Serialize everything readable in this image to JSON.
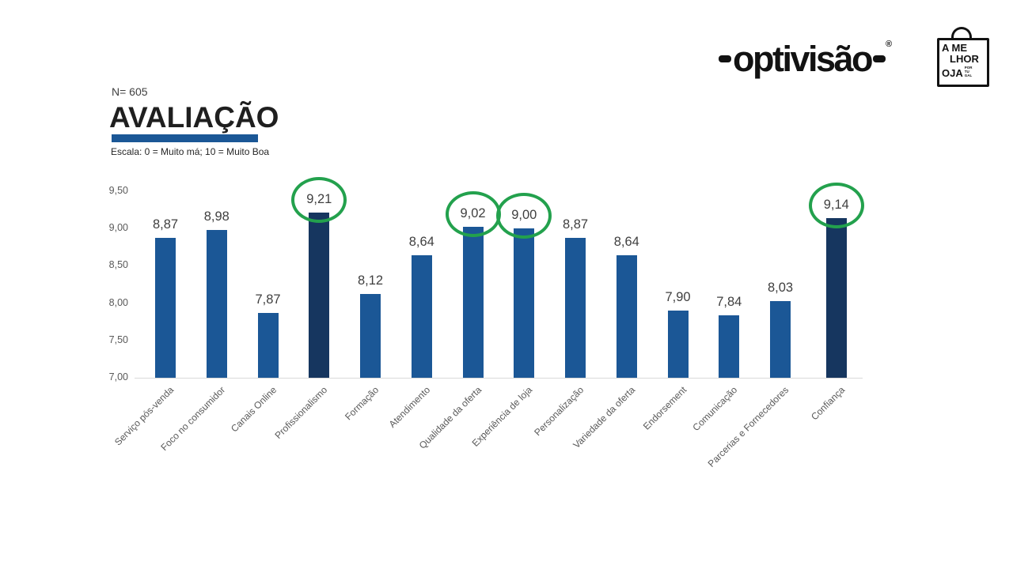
{
  "header": {
    "brand": "optivisão",
    "brand_mark": "®",
    "badge": {
      "line1": "A ME",
      "line2": "LHOR",
      "line3": "OJA",
      "small": "POR TU GAL"
    }
  },
  "title_block": {
    "sample": "N= 605",
    "title": "AVALIAÇÃO",
    "scale_note": "Escala: 0 = Muito má; 10 = Muito Boa"
  },
  "chart_data": {
    "type": "bar",
    "title": "AVALIAÇÃO",
    "categories": [
      "Serviço pós-venda",
      "Foco no consumidor",
      "Canais Online",
      "Profissionalismo",
      "Formação",
      "Atendimento",
      "Qualidade da oferta",
      "Experiência de loja",
      "Personalização",
      "Variedade da oferta",
      "Endorsement",
      "Comunicação",
      "Parcerias e Fornecedores",
      "Confiança"
    ],
    "values": [
      8.87,
      8.98,
      7.87,
      9.21,
      8.12,
      8.64,
      9.02,
      9.0,
      8.87,
      8.64,
      7.9,
      7.84,
      8.03,
      9.14
    ],
    "value_labels": [
      "8,87",
      "8,98",
      "7,87",
      "9,21",
      "8,12",
      "8,64",
      "9,02",
      "9,00",
      "8,87",
      "8,64",
      "7,90",
      "7,84",
      "8,03",
      "9,14"
    ],
    "highlighted_indices": [
      3,
      13
    ],
    "circled_indices": [
      3,
      6,
      7,
      13
    ],
    "ylim": [
      7.0,
      9.5
    ],
    "yticks": [
      {
        "value": 9.5,
        "label": "9,50"
      },
      {
        "value": 9.0,
        "label": "9,00"
      },
      {
        "value": 8.5,
        "label": "8,50"
      },
      {
        "value": 8.0,
        "label": "8,00"
      },
      {
        "value": 7.5,
        "label": "7,50"
      },
      {
        "value": 7.0,
        "label": "7,00"
      }
    ],
    "grid": false,
    "legend": null,
    "colors": {
      "bar": "#1B5796",
      "bar_highlight": "#16365F",
      "circle": "#23A14D",
      "baseline": "#d9d9d9"
    }
  }
}
